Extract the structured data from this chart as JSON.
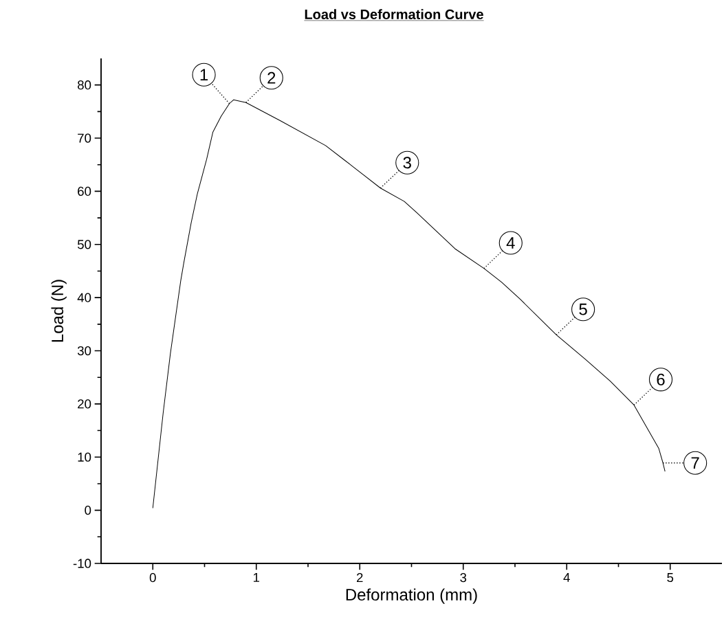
{
  "chart_data": {
    "type": "line",
    "title": "Load vs Deformation Curve",
    "xlabel": "Deformation (mm)",
    "ylabel": "Load (N)",
    "xlim": [
      -0.5,
      5.5
    ],
    "ylim": [
      -10,
      85
    ],
    "xticks": [
      0,
      1,
      2,
      3,
      4,
      5
    ],
    "yticks": [
      -10,
      0,
      10,
      20,
      30,
      40,
      50,
      60,
      70,
      80
    ],
    "grid": false,
    "marker": "none",
    "line_style": "solid",
    "series": [
      {
        "color": "#000000",
        "x": [
          0,
          0.1,
          0.17,
          0.27,
          0.3,
          0.37,
          0.43,
          0.52,
          0.58,
          0.66,
          0.74,
          0.78,
          0.9,
          1.23,
          1.67,
          1.85,
          1.93,
          2.2,
          2.43,
          2.55,
          2.92,
          3.2,
          3.37,
          3.55,
          3.9,
          4.18,
          4.42,
          4.65,
          4.89,
          4.93,
          4.95
        ],
        "values": [
          0.4,
          18.3,
          29.5,
          43.2,
          46.6,
          54,
          59.5,
          66,
          71.1,
          74.1,
          76.5,
          77.2,
          76.7,
          73.3,
          68.6,
          65.9,
          64.7,
          60.6,
          58.1,
          56,
          49.2,
          45.5,
          42.9,
          39.7,
          33,
          28.4,
          24.3,
          19.8,
          11.6,
          8.9,
          7.3
        ]
      }
    ],
    "annotations": [
      {
        "text": "1",
        "x": 0.74,
        "y": 76.5
      },
      {
        "text": "2",
        "x": 0.9,
        "y": 76.7
      },
      {
        "text": "3",
        "x": 2.2,
        "y": 60.6
      },
      {
        "text": "4",
        "x": 3.2,
        "y": 45.5
      },
      {
        "text": "5",
        "x": 3.9,
        "y": 33
      },
      {
        "text": "6",
        "x": 4.65,
        "y": 19.8
      },
      {
        "text": "7",
        "x": 4.93,
        "y": 8.9
      }
    ]
  }
}
